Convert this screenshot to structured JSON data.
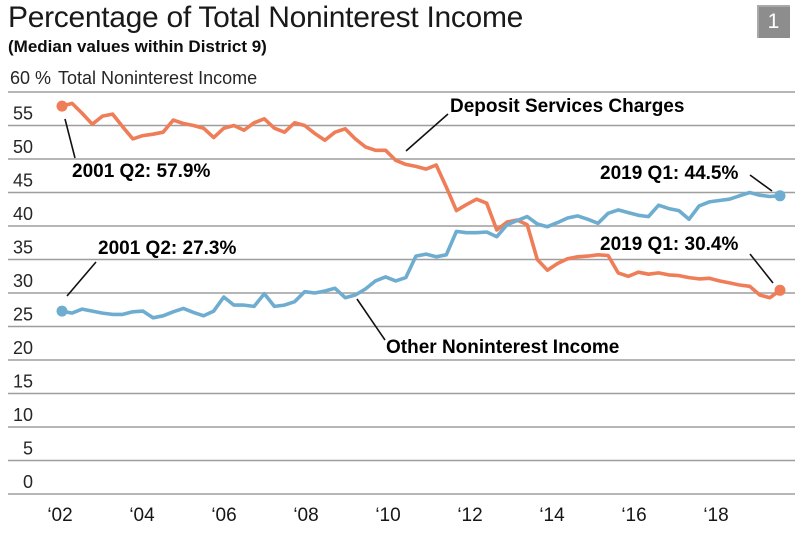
{
  "header": {
    "title": "Percentage of Total Noninterest Income",
    "subtitle": "(Median values within District 9)",
    "figure_number": "1"
  },
  "chart_data": {
    "type": "line",
    "title": "Percentage of Total Noninterest Income",
    "subtitle": "(Median values within District 9)",
    "x_start": "2001 Q2",
    "x_end": "2019 Q1",
    "y_axis": {
      "top_tick_label": "60 %",
      "axis_title": "Total Noninterest Income",
      "ticks": [
        60,
        55,
        50,
        45,
        40,
        35,
        30,
        25,
        20,
        15,
        10,
        5,
        0
      ],
      "range": [
        0,
        60
      ],
      "grid": true
    },
    "x_axis": {
      "tick_labels": [
        "‘02",
        "‘04",
        "‘06",
        "‘08",
        "‘10",
        "‘12",
        "‘14",
        "‘16",
        "‘18"
      ]
    },
    "series": [
      {
        "name": "Deposit Services Charges",
        "color": "#ef7d57",
        "start_annotation": "2001 Q2: 57.9%",
        "end_annotation": "2019 Q1: 30.4%",
        "values": [
          57.9,
          58.3,
          56.8,
          55.2,
          56.4,
          56.7,
          54.8,
          53.0,
          53.5,
          53.7,
          54.0,
          55.8,
          55.3,
          55.0,
          54.6,
          53.2,
          54.6,
          55.0,
          54.3,
          55.4,
          56.0,
          54.6,
          54.0,
          55.4,
          55.0,
          53.8,
          52.8,
          54.0,
          54.5,
          53.0,
          51.8,
          51.3,
          51.3,
          49.8,
          49.2,
          48.9,
          48.5,
          49.1,
          45.8,
          42.3,
          43.2,
          44.0,
          43.4,
          39.4,
          40.6,
          40.9,
          40.2,
          35.0,
          33.4,
          34.4,
          35.1,
          35.4,
          35.5,
          35.7,
          35.6,
          33.0,
          32.5,
          33.1,
          32.8,
          33.0,
          32.7,
          32.6,
          32.3,
          32.1,
          32.2,
          31.8,
          31.5,
          31.2,
          31.0,
          29.7,
          29.3,
          30.4
        ]
      },
      {
        "name": "Other Noninterest Income",
        "color": "#6fadd0",
        "start_annotation": "2001 Q2: 27.3%",
        "end_annotation": "2019 Q1: 44.5%",
        "values": [
          27.3,
          27.0,
          27.6,
          27.3,
          27.0,
          26.8,
          26.8,
          27.2,
          27.3,
          26.3,
          26.6,
          27.2,
          27.7,
          27.1,
          26.6,
          27.3,
          29.4,
          28.2,
          28.2,
          28.0,
          29.9,
          28.0,
          28.2,
          28.7,
          30.2,
          30.0,
          30.3,
          30.7,
          29.3,
          29.7,
          30.6,
          31.8,
          32.4,
          31.8,
          32.3,
          35.5,
          35.8,
          35.4,
          35.7,
          39.2,
          39.0,
          39.0,
          39.1,
          38.4,
          40.2,
          40.8,
          41.4,
          40.3,
          39.9,
          40.5,
          41.2,
          41.5,
          41.0,
          40.4,
          41.9,
          42.4,
          42.0,
          41.6,
          41.4,
          43.1,
          42.6,
          42.3,
          41.0,
          43.0,
          43.6,
          43.8,
          44.0,
          44.5,
          45.0,
          44.6,
          44.4,
          44.5
        ]
      }
    ]
  }
}
